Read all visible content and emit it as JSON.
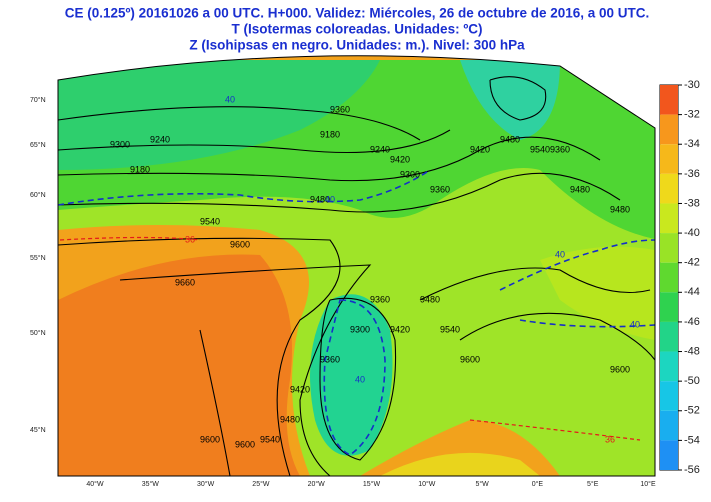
{
  "header": {
    "lines": [
      "CE (0.125º) 20161026 a 00 UTC.  H+000. Validez: Miércoles, 26 de octubre de 2016,  a  00 UTC.",
      "T (Isotermas coloreadas. Unidades: ºC)",
      "Z (Isohipsas en negro. Unidades: m.).  Nivel: 300 hPa"
    ]
  },
  "colorbar": {
    "values": [
      -30,
      -32,
      -34,
      -36,
      -38,
      -40,
      -42,
      -44,
      -46,
      -48,
      -50,
      -52,
      -54,
      -56
    ],
    "colors": [
      "#f2561d",
      "#f7971c",
      "#f6b81a",
      "#efd91b",
      "#c9e81e",
      "#99e326",
      "#5fd92f",
      "#2fd24f",
      "#22d488",
      "#1cd6c0",
      "#17c6e6",
      "#19aeef",
      "#1e90f4"
    ]
  },
  "lat_labels": [
    "70°N",
    "65°N",
    "60°N",
    "55°N",
    "50°N",
    "45°N"
  ],
  "lon_labels": [
    "40°W",
    "35°W",
    "30°W",
    "25°W",
    "20°W",
    "15°W",
    "10°W",
    "5°W",
    "0°E",
    "5°E",
    "10°E"
  ],
  "contour_labels": [
    9180,
    9240,
    9300,
    9360,
    9420,
    9480,
    9540,
    9600,
    9660,
    9180,
    9240,
    9300,
    9360,
    9420,
    9480,
    9540,
    9300,
    9360,
    9420,
    9480,
    9540,
    9600,
    9360,
    9420,
    9480,
    9540,
    9600,
    9360,
    9480,
    9600,
    9480,
    9600
  ],
  "isotherm_labels": [
    40,
    40,
    36,
    40,
    40,
    36,
    40
  ]
}
